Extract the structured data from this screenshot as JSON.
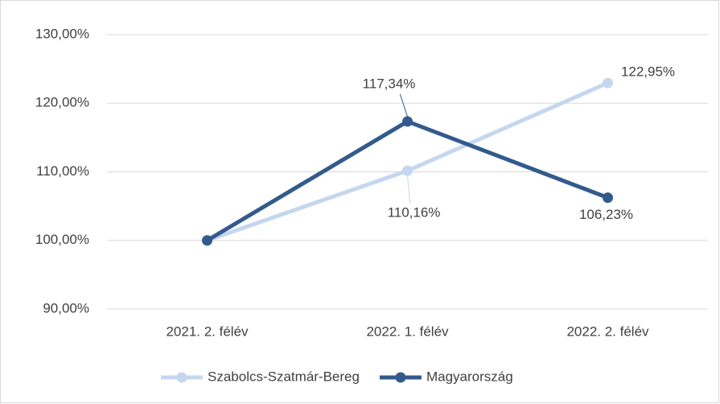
{
  "chart_data": {
    "type": "line",
    "categories": [
      "2021. 2. félév",
      "2022. 1. félév",
      "2022. 2. félév"
    ],
    "series": [
      {
        "name": "Szabolcs-Szatmár-Bereg",
        "color": "#c5d7ee",
        "values": [
          100,
          110.16,
          122.95
        ],
        "value_labels": [
          null,
          "110,16%",
          "122,95%"
        ]
      },
      {
        "name": "Magyarország",
        "color": "#335a8c",
        "values": [
          100,
          117.34,
          106.23
        ],
        "value_labels": [
          null,
          "117,34%",
          "106,23%"
        ]
      }
    ],
    "ylim": [
      90,
      130
    ],
    "yticks": [
      {
        "value": 90,
        "label": "90,00%"
      },
      {
        "value": 100,
        "label": "100,00%"
      },
      {
        "value": 110,
        "label": "110,00%"
      },
      {
        "value": 120,
        "label": "120,00%"
      },
      {
        "value": 130,
        "label": "130,00%"
      }
    ],
    "grid": true,
    "legend": "bottom"
  }
}
